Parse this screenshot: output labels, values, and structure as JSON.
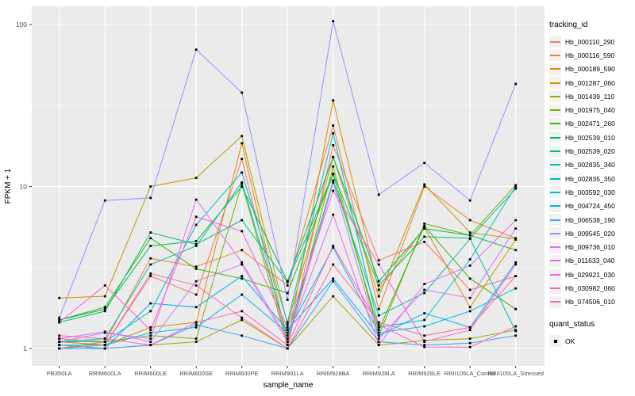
{
  "figure": {
    "background": "#FFFFFF",
    "panel_background": "#EBEBEB",
    "grid_color": "#FFFFFF",
    "tick_text_color": "#4D4D4D",
    "tick_mark_color": "#333333",
    "point_color": "#000000",
    "legend_key_background": "#F2F2F2"
  },
  "chart_data": {
    "type": "line",
    "title": "",
    "xlabel": "sample_name",
    "ylabel": "FPKM + 1",
    "y_scale": "log10",
    "ylim": [
      1,
      130
    ],
    "y_ticks": [
      1,
      10,
      100
    ],
    "y_minor_ticks": [
      3.162,
      31.62
    ],
    "grid": "on",
    "legend_position": "right",
    "categories": [
      "PB350LA",
      "RRIM600LA",
      "RRIM600LE",
      "RRIM600SE",
      "RRIM600PE",
      "RRIM901LA",
      "RRIM928BA",
      "RRIM928LA",
      "RRIM928LE",
      "RRII105LA_Control",
      "RRII105LA_Stressed"
    ],
    "series": [
      {
        "name": "Hb_000110_290",
        "color": "#F8766D",
        "values": [
          1.1,
          1.05,
          2.8,
          2.15,
          14.8,
          1.05,
          18.0,
          3.5,
          4.55,
          2.3,
          2.8
        ]
      },
      {
        "name": "Hb_000116_590",
        "color": "#EB8335",
        "values": [
          1.15,
          1.1,
          3.6,
          3.2,
          4.05,
          2.45,
          23.8,
          1.75,
          10.0,
          6.2,
          4.8
        ]
      },
      {
        "name": "Hb_000189_590",
        "color": "#D89000",
        "values": [
          1.1,
          1.05,
          1.35,
          1.45,
          18.5,
          1.1,
          34.0,
          2.3,
          5.6,
          1.8,
          4.7
        ]
      },
      {
        "name": "Hb_001287_060",
        "color": "#C09B00",
        "values": [
          2.05,
          2.1,
          10.0,
          11.3,
          20.5,
          1.4,
          15.2,
          2.1,
          10.3,
          5.2,
          4.75
        ]
      },
      {
        "name": "Hb_001439_110",
        "color": "#A3A500",
        "values": [
          1.05,
          1.0,
          1.05,
          1.1,
          1.5,
          1.0,
          2.1,
          1.05,
          1.12,
          1.15,
          1.3
        ]
      },
      {
        "name": "Hb_001975_040",
        "color": "#7CAE00",
        "values": [
          1.0,
          1.1,
          1.2,
          1.15,
          10.4,
          1.05,
          13.3,
          1.2,
          5.9,
          5.0,
          10.2
        ]
      },
      {
        "name": "Hb_002471_260",
        "color": "#39B600",
        "values": [
          1.5,
          1.8,
          4.8,
          3.1,
          2.7,
          2.2,
          11.9,
          1.3,
          5.7,
          2.7,
          1.75
        ]
      },
      {
        "name": "Hb_002539_010",
        "color": "#00BB4E",
        "values": [
          1.5,
          1.75,
          4.3,
          4.6,
          10.0,
          2.6,
          15.2,
          2.6,
          5.5,
          5.0,
          4.05
        ]
      },
      {
        "name": "Hb_002539_020",
        "color": "#00BF7D",
        "values": [
          1.45,
          1.7,
          5.2,
          4.4,
          6.2,
          2.57,
          12.0,
          2.45,
          4.9,
          4.8,
          9.7
        ]
      },
      {
        "name": "Hb_002835_340",
        "color": "#00C1A3",
        "values": [
          1.1,
          1.15,
          3.3,
          4.3,
          10.6,
          1.2,
          10.9,
          1.6,
          2.2,
          4.75,
          1.28
        ]
      },
      {
        "name": "Hb_002835_350",
        "color": "#00BFC4",
        "values": [
          1.1,
          1.1,
          1.7,
          5.8,
          12.2,
          1.45,
          21.3,
          1.35,
          1.5,
          3.55,
          10.0
        ]
      },
      {
        "name": "Hb_003592_030",
        "color": "#00BAE0",
        "values": [
          1.05,
          1.05,
          1.25,
          1.35,
          2.15,
          1.25,
          4.2,
          1.25,
          1.37,
          1.7,
          2.35
        ]
      },
      {
        "name": "Hb_004724_450",
        "color": "#00B0F6",
        "values": [
          1.0,
          1.0,
          1.9,
          1.8,
          2.8,
          1.3,
          2.7,
          1.2,
          1.65,
          1.35,
          3.4
        ]
      },
      {
        "name": "Hb_006538_190",
        "color": "#35A2FF",
        "values": [
          1.05,
          1.0,
          1.05,
          1.4,
          1.2,
          1.0,
          2.6,
          1.1,
          1.05,
          1.08,
          1.2
        ]
      },
      {
        "name": "Hb_009545_020",
        "color": "#9590FF",
        "values": [
          1.55,
          8.2,
          8.5,
          70.0,
          38.0,
          2.0,
          105.0,
          8.9,
          14.0,
          8.2,
          43.0
        ]
      },
      {
        "name": "Hb_009736_010",
        "color": "#C77CFF",
        "values": [
          1.15,
          1.27,
          1.1,
          2.6,
          3.3,
          1.1,
          10.6,
          1.15,
          2.3,
          2.05,
          5.5
        ]
      },
      {
        "name": "Hb_011633_040",
        "color": "#E76BF3",
        "values": [
          1.1,
          1.25,
          1.15,
          8.3,
          3.4,
          1.15,
          6.7,
          1.05,
          2.5,
          3.25,
          6.2
        ]
      },
      {
        "name": "Hb_029921_030",
        "color": "#FA62DB",
        "values": [
          1.45,
          2.45,
          1.3,
          6.5,
          5.3,
          1.35,
          9.4,
          3.3,
          1.1,
          1.3,
          3.3
        ]
      },
      {
        "name": "Hb_030982_060",
        "color": "#FF61C3",
        "values": [
          1.2,
          1.15,
          1.05,
          1.45,
          1.7,
          1.05,
          4.3,
          1.4,
          1.02,
          1.02,
          1.37
        ]
      },
      {
        "name": "Hb_074506_010",
        "color": "#FF67A4",
        "values": [
          1.0,
          1.05,
          2.9,
          2.45,
          1.55,
          1.0,
          3.3,
          1.45,
          1.2,
          1.35,
          2.8
        ]
      }
    ],
    "legend": {
      "tracking_title": "tracking_id",
      "quant_title": "quant_status",
      "quant_value": "OK"
    }
  }
}
